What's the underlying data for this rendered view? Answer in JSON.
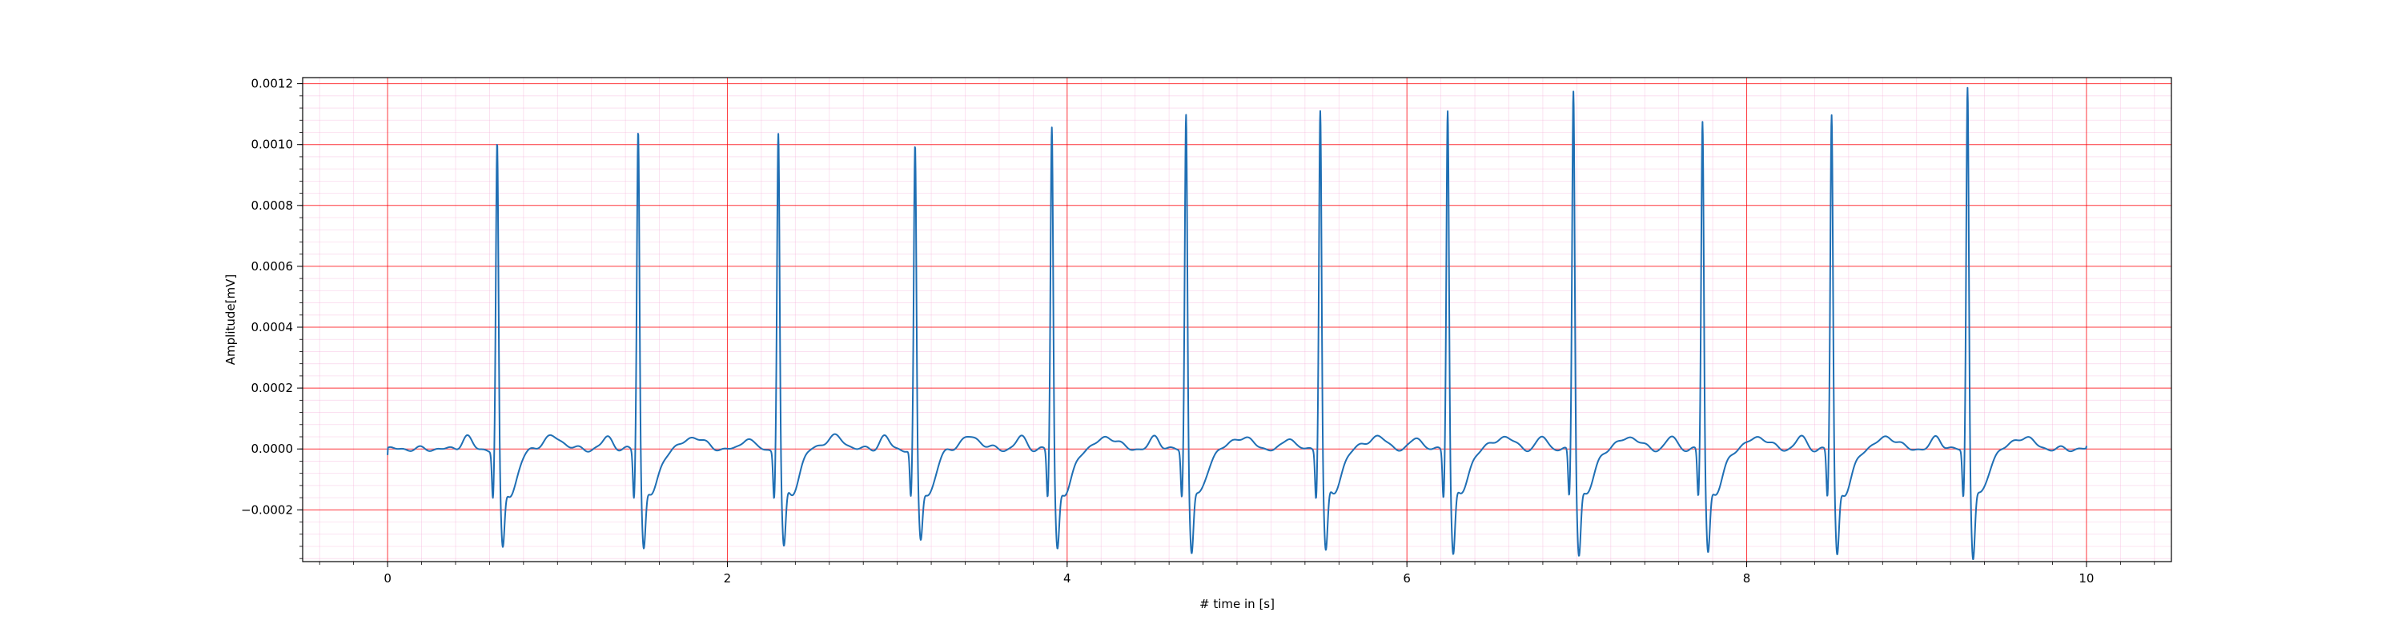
{
  "chart_data": {
    "type": "line",
    "title": "",
    "xlabel": "# time in [s]",
    "ylabel": "Amplitude[mV]",
    "xlim": [
      -0.5,
      10.5
    ],
    "ylim": [
      -0.00037,
      0.00122
    ],
    "x_major_ticks": [
      0,
      2,
      4,
      6,
      8,
      10
    ],
    "x_tick_labels": [
      "0",
      "2",
      "4",
      "6",
      "8",
      "10"
    ],
    "x_minor_step": 0.2,
    "y_major_ticks": [
      -0.0002,
      0.0,
      0.0002,
      0.0004,
      0.0006,
      0.0008,
      0.001,
      0.0012
    ],
    "y_tick_labels": [
      "−0.0002",
      "0.0000",
      "0.0002",
      "0.0004",
      "0.0006",
      "0.0008",
      "0.0010",
      "0.0012"
    ],
    "y_minor_step": 4e-05,
    "grid": true,
    "grid_major_color": "#ff0000",
    "grid_minor_color": "#f5b0d8",
    "line_color": "#1f6fb4",
    "series": [
      {
        "beats": [
          {
            "r_time": 0.645,
            "r_peak": 0.00096,
            "s_min": -0.00027
          },
          {
            "r_time": 1.475,
            "r_peak": 0.00101,
            "s_min": -0.00027
          },
          {
            "r_time": 2.3,
            "r_peak": 0.001,
            "s_min": -0.00027
          },
          {
            "r_time": 3.105,
            "r_peak": 0.00095,
            "s_min": -0.00024
          },
          {
            "r_time": 3.91,
            "r_peak": 0.00102,
            "s_min": -0.00027
          },
          {
            "r_time": 4.7,
            "r_peak": 0.00106,
            "s_min": -0.00028
          },
          {
            "r_time": 5.49,
            "r_peak": 0.00108,
            "s_min": -0.00028
          },
          {
            "r_time": 6.24,
            "r_peak": 0.00108,
            "s_min": -0.00029
          },
          {
            "r_time": 6.98,
            "r_peak": 0.00114,
            "s_min": -0.00029
          },
          {
            "r_time": 7.74,
            "r_peak": 0.00104,
            "s_min": -0.00028
          },
          {
            "r_time": 8.5,
            "r_peak": 0.00106,
            "s_min": -0.00029
          },
          {
            "r_time": 9.3,
            "r_peak": 0.00115,
            "s_min": -0.0003
          }
        ],
        "x_start": 0.0,
        "x_end": 10.0,
        "start_value": -2e-05,
        "end_value": 1e-05
      }
    ]
  }
}
